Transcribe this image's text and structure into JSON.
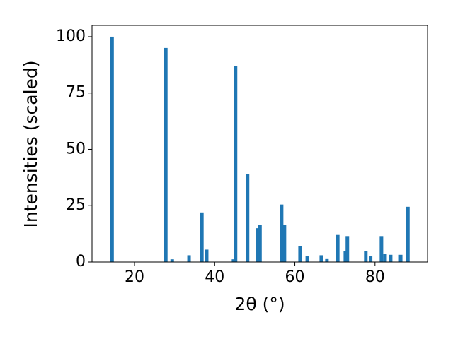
{
  "chart_data": {
    "type": "bar",
    "xlabel": "2θ (°)",
    "ylabel": "Intensities (scaled)",
    "x": [
      14.4,
      27.8,
      29.4,
      33.6,
      36.8,
      38.0,
      44.7,
      45.2,
      48.2,
      50.7,
      51.3,
      56.7,
      57.4,
      61.3,
      63.1,
      66.6,
      68.0,
      70.7,
      72.6,
      73.1,
      77.7,
      78.9,
      81.6,
      82.5,
      83.9,
      86.4,
      88.2
    ],
    "values": [
      100,
      95,
      1.2,
      3,
      22,
      5.5,
      1.2,
      87,
      39,
      15,
      16.5,
      25.5,
      16.5,
      7,
      2.5,
      3,
      1.3,
      12,
      4.7,
      11.5,
      5,
      2.5,
      11.5,
      3.5,
      3.2,
      3.2,
      24.5
    ],
    "color": "#1f77b4",
    "xlim": [
      9.4,
      93.1
    ],
    "ylim": [
      0,
      105
    ],
    "xticks": [
      20,
      40,
      60,
      80
    ],
    "yticks": [
      0,
      25,
      50,
      75,
      100
    ],
    "grid": false
  }
}
